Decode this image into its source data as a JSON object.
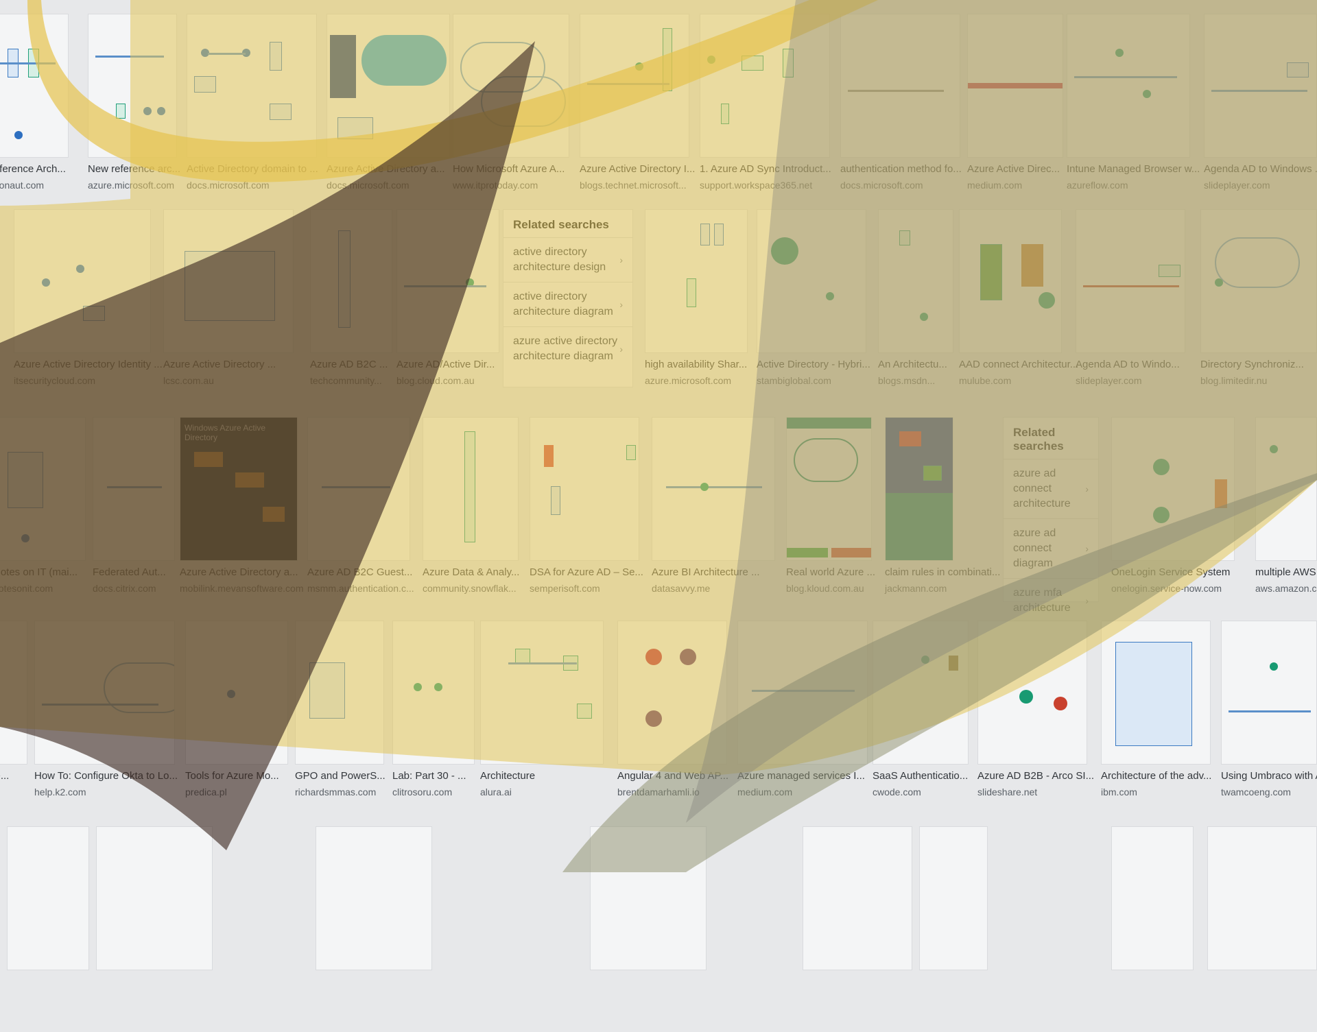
{
  "grid": {
    "row1": [
      {
        "caption": "Reference Arch...",
        "source": "citronaut.com"
      },
      {
        "caption": "New reference arc...",
        "source": "azure.microsoft.com"
      },
      {
        "caption": "Active Directory domain to ...",
        "source": "docs.microsoft.com"
      },
      {
        "caption": "Azure Active Directory a...",
        "source": "docs.microsoft.com"
      },
      {
        "caption": "How Microsoft Azure A...",
        "source": "www.itprotoday.com"
      },
      {
        "caption": "Azure Active Directory I...",
        "source": "blogs.technet.microsoft..."
      },
      {
        "caption": "1. Azure AD Sync Introduct...",
        "source": "support.workspace365.net"
      },
      {
        "caption": "authentication method fo...",
        "source": "docs.microsoft.com"
      },
      {
        "caption": "Azure Active Direc...",
        "source": "medium.com"
      },
      {
        "caption": "Intune Managed Browser w...",
        "source": "azureflow.com"
      },
      {
        "caption": "Agenda AD to Windows ...",
        "source": "slideplayer.com"
      }
    ],
    "row2": [
      {
        "caption": "Azure Active Directory Identity ...",
        "source": "itsecuritycloud.com"
      },
      {
        "caption": "Azure Active Directory ...",
        "source": "lcsc.com.au"
      },
      {
        "caption": "Azure AD B2C ...",
        "source": "techcommunity..."
      },
      {
        "caption": "Azure AD/Active Dir...",
        "source": "blog.cloud.com.au"
      },
      {
        "caption": "high availability Shar...",
        "source": "azure.microsoft.com"
      },
      {
        "caption": "Active Directory - Hybri...",
        "source": "stambiglobal.com"
      },
      {
        "caption": "An Architectu...",
        "source": "blogs.msdn..."
      },
      {
        "caption": "AAD connect Architectur...",
        "source": "mulube.com"
      },
      {
        "caption": "Agenda AD to Windo...",
        "source": "slideplayer.com"
      },
      {
        "caption": "Directory Synchroniz...",
        "source": "blog.limitedir.nu"
      }
    ],
    "row3": [
      {
        "caption": "Notes on IT (mai...",
        "source": "notesonit.com"
      },
      {
        "caption": "Federated Aut...",
        "source": "docs.citrix.com"
      },
      {
        "caption": "Azure Active Directory a...",
        "source": "mobilink.mevansoftware.com"
      },
      {
        "caption": "Azure AD B2C Guest...",
        "source": "msmm.authentication.c..."
      },
      {
        "caption": "Azure Data & Analy...",
        "source": "community.snowflak..."
      },
      {
        "caption": "DSA for Azure AD – Se...",
        "source": "semperisoft.com"
      },
      {
        "caption": "Azure BI Architecture ...",
        "source": "datasavvy.me"
      },
      {
        "caption": "Real world Azure ...",
        "source": "blog.kloud.com.au"
      },
      {
        "caption": "claim rules in combinati...",
        "source": "jackmann.com"
      },
      {
        "caption": "OneLogin Service System",
        "source": "onelogin.service-now.com"
      },
      {
        "caption": "multiple AWS ...",
        "source": "aws.amazon.com"
      }
    ],
    "row4": [
      {
        "caption": "Me...",
        "source": ""
      },
      {
        "caption": "How To: Configure Okta to Lo...",
        "source": "help.k2.com"
      },
      {
        "caption": "Tools for Azure Mo...",
        "source": "predica.pl"
      },
      {
        "caption": "GPO and PowerS...",
        "source": "richardsmmas.com"
      },
      {
        "caption": "Lab: Part 30 - ...",
        "source": "clitrosoru.com"
      },
      {
        "caption": "Architecture",
        "source": "alura.ai"
      },
      {
        "caption": "Angular 4 and Web AP...",
        "source": "brentdamarhamli.io"
      },
      {
        "caption": "Azure managed services I...",
        "source": "medium.com"
      },
      {
        "caption": "SaaS Authenticatio...",
        "source": "cwode.com"
      },
      {
        "caption": "Azure AD B2B - Arco SI...",
        "source": "slideshare.net"
      },
      {
        "caption": "Architecture of the adv...",
        "source": "ibm.com"
      },
      {
        "caption": "Using Umbraco with A...",
        "source": "twamcoeng.com"
      }
    ]
  },
  "related1": {
    "title": "Related searches",
    "items": [
      {
        "label": "active directory architecture design"
      },
      {
        "label": "active directory architecture diagram"
      },
      {
        "label": "azure active directory architecture diagram"
      }
    ]
  },
  "related2": {
    "title": "Related searches",
    "items": [
      {
        "label": "azure ad connect architecture"
      },
      {
        "label": "azure ad connect diagram"
      },
      {
        "label": "azure mfa architecture"
      }
    ]
  },
  "thumb_text": {
    "dark_title": "Windows Azure Active Directory",
    "chevron": "›"
  },
  "colors": {
    "overlay_yellow": "#e2c45a",
    "overlay_brown": "#3d2a22",
    "overlay_olive": "#9a8f57",
    "accent_blue": "#2d6fc0",
    "accent_green": "#189a72"
  }
}
